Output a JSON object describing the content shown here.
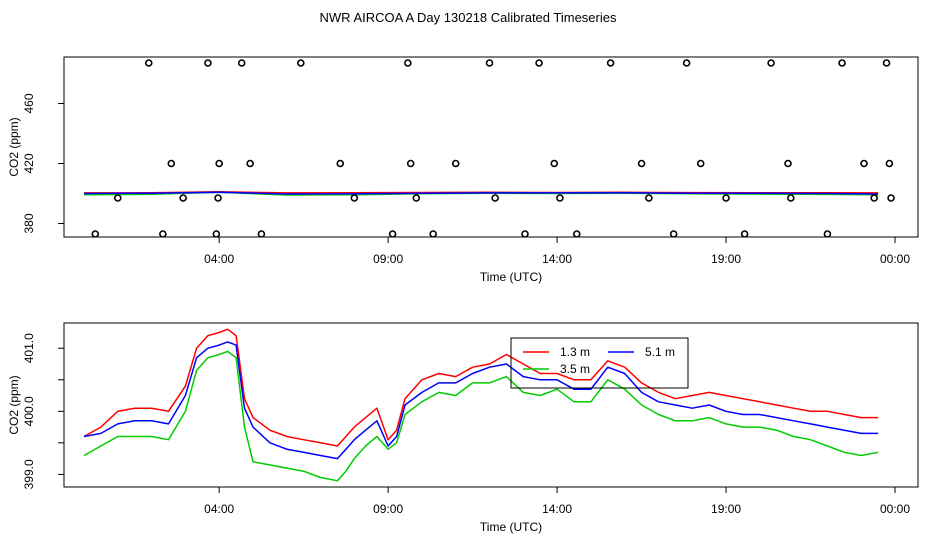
{
  "figure_title": "NWR AIRCOA A  Day 130218  Calibrated Timeseries",
  "chart_data": [
    {
      "type": "line",
      "panel": "top",
      "xlabel": "Time (UTC)",
      "ylabel": "CO2 (ppm)",
      "xlim": [
        0,
        1440
      ],
      "ylim": [
        371,
        491
      ],
      "x_tick_values": [
        240,
        540,
        840,
        1140,
        1440
      ],
      "x_tick_labels": [
        "04:00",
        "09:00",
        "14:00",
        "19:00",
        "00:00"
      ],
      "y_tick_values": [
        380,
        420,
        460
      ],
      "y_tick_labels": [
        "380",
        "420",
        "460"
      ],
      "series": [
        {
          "name": "1.3 m",
          "color": "#ff0000",
          "x": [
            0,
            120,
            240,
            360,
            480,
            600,
            720,
            840,
            960,
            1080,
            1200,
            1320,
            1410
          ],
          "y": [
            400.4,
            400.5,
            401.1,
            400.4,
            400.5,
            400.7,
            400.8,
            400.7,
            400.8,
            400.6,
            400.5,
            400.5,
            400.4
          ]
        },
        {
          "name": "3.5 m",
          "color": "#00cc00",
          "x": [
            0,
            120,
            240,
            360,
            480,
            600,
            720,
            840,
            960,
            1080,
            1200,
            1320,
            1410
          ],
          "y": [
            399.2,
            399.5,
            400.8,
            399.0,
            399.1,
            399.8,
            400.1,
            400.0,
            400.1,
            399.8,
            399.6,
            399.4,
            399.2
          ]
        },
        {
          "name": "5.1 m",
          "color": "#0000ff",
          "x": [
            0,
            120,
            240,
            360,
            480,
            600,
            720,
            840,
            960,
            1080,
            1200,
            1320,
            1410
          ],
          "y": [
            400.0,
            400.2,
            400.9,
            399.7,
            399.8,
            400.2,
            400.4,
            400.4,
            400.5,
            400.2,
            400.1,
            400.0,
            399.7
          ]
        },
        {
          "name": "calibration points",
          "style": "points",
          "x": [
            20,
            60,
            115,
            140,
            155,
            176,
            220,
            235,
            238,
            240,
            280,
            295,
            315,
            385,
            455,
            480,
            548,
            575,
            580,
            590,
            620,
            660,
            720,
            730,
            783,
            808,
            835,
            845,
            875,
            935,
            990,
            1003,
            1047,
            1070,
            1095,
            1140,
            1173,
            1220,
            1250,
            1255,
            1320,
            1346,
            1385,
            1403,
            1425,
            1430,
            1433
          ],
          "y": [
            373,
            397,
            487,
            373,
            420,
            397,
            487,
            373,
            397,
            420,
            487,
            420,
            373,
            487,
            420,
            397,
            373,
            487,
            420,
            397,
            373,
            420,
            487,
            397,
            373,
            487,
            420,
            397,
            373,
            487,
            420,
            397,
            373,
            487,
            420,
            397,
            373,
            487,
            420,
            397,
            373,
            487,
            420,
            397,
            487,
            420,
            397
          ]
        }
      ]
    },
    {
      "type": "line",
      "panel": "bottom",
      "xlabel": "Time (UTC)",
      "ylabel": "CO2 (ppm)",
      "xlim": [
        0,
        1440
      ],
      "ylim": [
        398.8,
        401.4
      ],
      "x_tick_values": [
        240,
        540,
        840,
        1140,
        1440
      ],
      "x_tick_labels": [
        "04:00",
        "09:00",
        "14:00",
        "19:00",
        "00:00"
      ],
      "y_tick_values": [
        399.0,
        399.5,
        400.0,
        400.5,
        401.0
      ],
      "y_tick_labels": [
        "399.0",
        "",
        "400.0",
        "",
        "401.0"
      ],
      "legend": {
        "position": "top-center",
        "entries": [
          "1.3 m",
          "5.1 m",
          "3.5 m"
        ]
      },
      "series": [
        {
          "name": "1.3 m",
          "color": "#ff0000",
          "x": [
            0,
            30,
            60,
            90,
            120,
            150,
            180,
            200,
            220,
            240,
            255,
            270,
            285,
            300,
            330,
            360,
            390,
            420,
            450,
            465,
            480,
            500,
            520,
            540,
            555,
            570,
            600,
            630,
            660,
            690,
            720,
            750,
            780,
            810,
            840,
            870,
            900,
            930,
            960,
            990,
            1020,
            1050,
            1080,
            1110,
            1140,
            1170,
            1200,
            1230,
            1260,
            1290,
            1320,
            1350,
            1380,
            1410
          ],
          "y": [
            399.6,
            399.75,
            400.0,
            400.05,
            400.05,
            400.0,
            400.4,
            401.0,
            401.2,
            401.25,
            401.3,
            401.2,
            400.2,
            399.9,
            399.7,
            399.6,
            399.55,
            399.5,
            399.45,
            399.6,
            399.75,
            399.9,
            400.05,
            399.55,
            399.7,
            400.2,
            400.5,
            400.6,
            400.55,
            400.7,
            400.75,
            400.9,
            400.75,
            400.6,
            400.6,
            400.5,
            400.5,
            400.8,
            400.7,
            400.45,
            400.3,
            400.2,
            400.25,
            400.3,
            400.25,
            400.2,
            400.15,
            400.1,
            400.05,
            400.0,
            400.0,
            399.95,
            399.9,
            399.9
          ]
        },
        {
          "name": "5.1 m",
          "color": "#0000ff",
          "x": [
            0,
            30,
            60,
            90,
            120,
            150,
            180,
            200,
            220,
            240,
            255,
            270,
            285,
            300,
            330,
            360,
            390,
            420,
            450,
            465,
            480,
            500,
            520,
            540,
            555,
            570,
            600,
            630,
            660,
            690,
            720,
            750,
            780,
            810,
            840,
            870,
            900,
            930,
            960,
            990,
            1020,
            1050,
            1080,
            1110,
            1140,
            1170,
            1200,
            1230,
            1260,
            1290,
            1320,
            1350,
            1380,
            1410
          ],
          "y": [
            399.6,
            399.65,
            399.8,
            399.85,
            399.85,
            399.8,
            400.25,
            400.85,
            401.0,
            401.05,
            401.1,
            401.05,
            400.05,
            399.75,
            399.5,
            399.4,
            399.35,
            399.3,
            399.25,
            399.4,
            399.55,
            399.7,
            399.85,
            399.45,
            399.6,
            400.1,
            400.3,
            400.45,
            400.45,
            400.6,
            400.7,
            400.75,
            400.55,
            400.5,
            400.5,
            400.35,
            400.35,
            400.7,
            400.6,
            400.3,
            400.15,
            400.1,
            400.05,
            400.1,
            400.0,
            399.95,
            399.95,
            399.9,
            399.85,
            399.8,
            399.75,
            399.7,
            399.65,
            399.65
          ]
        },
        {
          "name": "3.5 m",
          "color": "#00cc00",
          "x": [
            0,
            30,
            60,
            90,
            120,
            150,
            180,
            200,
            220,
            240,
            255,
            270,
            285,
            300,
            330,
            360,
            390,
            420,
            450,
            465,
            480,
            500,
            520,
            540,
            555,
            570,
            600,
            630,
            660,
            690,
            720,
            750,
            780,
            810,
            840,
            870,
            900,
            930,
            960,
            990,
            1020,
            1050,
            1080,
            1110,
            1140,
            1170,
            1200,
            1230,
            1260,
            1290,
            1320,
            1350,
            1380,
            1410
          ],
          "y": [
            399.3,
            399.45,
            399.6,
            399.6,
            399.6,
            399.55,
            400.0,
            400.65,
            400.85,
            400.9,
            400.95,
            400.85,
            399.75,
            399.2,
            399.15,
            399.1,
            399.05,
            398.95,
            398.9,
            399.05,
            399.25,
            399.45,
            399.6,
            399.4,
            399.5,
            399.95,
            400.15,
            400.3,
            400.25,
            400.45,
            400.45,
            400.55,
            400.3,
            400.25,
            400.35,
            400.15,
            400.15,
            400.5,
            400.35,
            400.1,
            399.95,
            399.85,
            399.85,
            399.9,
            399.8,
            399.75,
            399.75,
            399.7,
            399.6,
            399.55,
            399.45,
            399.35,
            399.3,
            399.35
          ]
        }
      ]
    }
  ]
}
